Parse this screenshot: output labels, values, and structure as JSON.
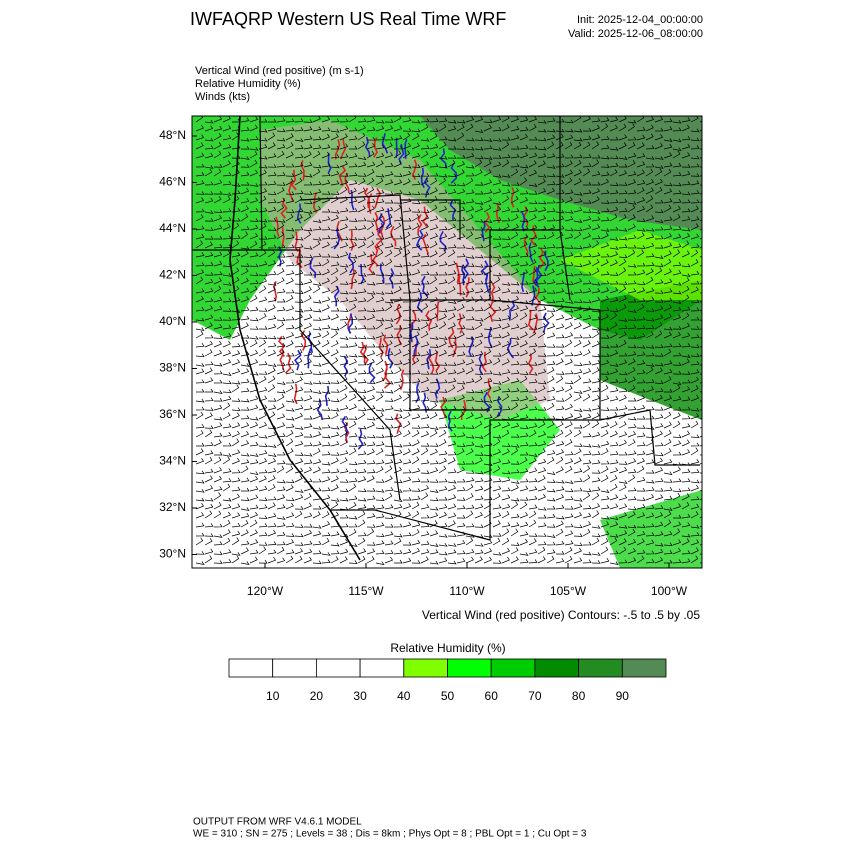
{
  "header": {
    "title": "IWFAQRP Western US Real Time WRF",
    "init": "Init: 2025-12-04_00:00:00",
    "valid": "Valid: 2025-12-06_08:00:00"
  },
  "fields": [
    "Vertical Wind (red positive)   (m s-1)",
    "Relative Humidity   (%)",
    "Winds   (kts)"
  ],
  "map": {
    "lat_labels": [
      "48°N",
      "46°N",
      "44°N",
      "42°N",
      "40°N",
      "38°N",
      "36°N",
      "34°N",
      "32°N",
      "30°N"
    ],
    "lon_labels": [
      "120°W",
      "115°W",
      "110°W",
      "105°W",
      "100°W"
    ],
    "contour_note": "Vertical Wind (red positive) Contours: -.5 to .5 by .05"
  },
  "colorbar": {
    "title": "Relative Humidity  (%)",
    "ticks": [
      10,
      20,
      30,
      40,
      50,
      60,
      70,
      80,
      90
    ],
    "colors": [
      "#ffffff",
      "#ffffff",
      "#ffffff",
      "#ffffff",
      "#80ff00",
      "#00ff00",
      "#00cd00",
      "#008b00",
      "#228b22",
      "#548b54"
    ]
  },
  "footer": {
    "line1": "OUTPUT FROM WRF V4.6.1 MODEL",
    "line2": "WE = 310 ; SN = 275 ; Levels = 38 ; Dis = 8km ; Phys Opt = 8 ; PBL Opt = 1 ; Cu Opt = 3"
  }
}
